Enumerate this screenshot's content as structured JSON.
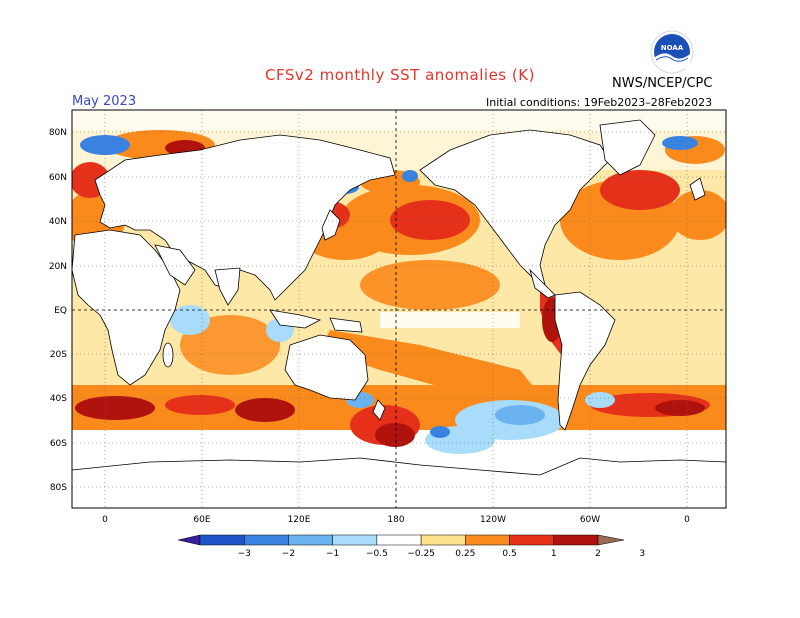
{
  "header": {
    "title": "CFSv2 monthly SST anomalies (K)",
    "month": "May 2023",
    "initial_conditions": "Initial conditions: 19Feb2023–28Feb2023",
    "agency": "NWS/NCEP/CPC",
    "logo_text": "NOAA"
  },
  "map": {
    "lat_labels": [
      "80N",
      "60N",
      "40N",
      "20N",
      "EQ",
      "20S",
      "40S",
      "60S",
      "80S"
    ],
    "lon_labels": [
      "0",
      "60E",
      "120E",
      "180",
      "120W",
      "60W",
      "0"
    ]
  },
  "colorbar": {
    "labels": [
      "−3",
      "−2",
      "−1",
      "−0.5",
      "−0.25",
      "0.25",
      "0.5",
      "1",
      "2",
      "3"
    ],
    "colors": [
      "#3a1ea0",
      "#1f55c8",
      "#3a82e0",
      "#6ab2f0",
      "#a8dcfa",
      "#ffffff",
      "#fde08a",
      "#fb8a1c",
      "#e5311a",
      "#b0130e",
      "#9a6a55"
    ]
  },
  "colors": {
    "land": "#ffffff",
    "coast": "#000000",
    "grid": "#555555"
  }
}
